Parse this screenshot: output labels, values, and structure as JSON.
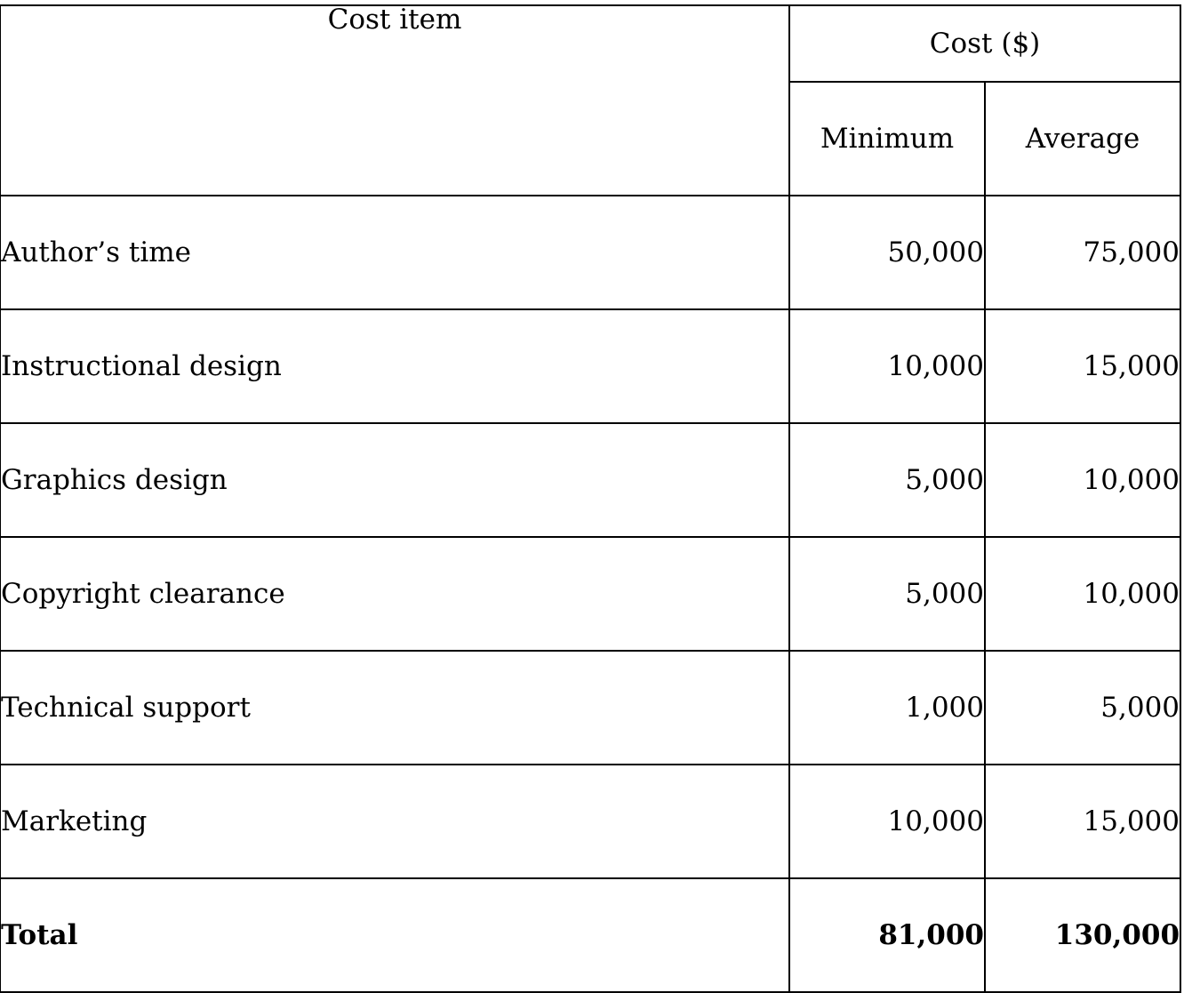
{
  "table": {
    "headers": {
      "cost_item": "Cost item",
      "cost_group": "Cost ($)",
      "minimum": "Minimum",
      "average": "Average"
    },
    "rows": [
      {
        "item": "Author’s time",
        "minimum": "50,000",
        "average": "75,000"
      },
      {
        "item": "Instructional design",
        "minimum": "10,000",
        "average": "15,000"
      },
      {
        "item": "Graphics design",
        "minimum": "5,000",
        "average": "10,000"
      },
      {
        "item": "Copyright clearance",
        "minimum": "5,000",
        "average": "10,000"
      },
      {
        "item": "Technical support",
        "minimum": "1,000",
        "average": "5,000"
      },
      {
        "item": "Marketing",
        "minimum": "10,000",
        "average": "15,000"
      }
    ],
    "total": {
      "item": "Total",
      "minimum": "81,000",
      "average": "130,000"
    }
  }
}
